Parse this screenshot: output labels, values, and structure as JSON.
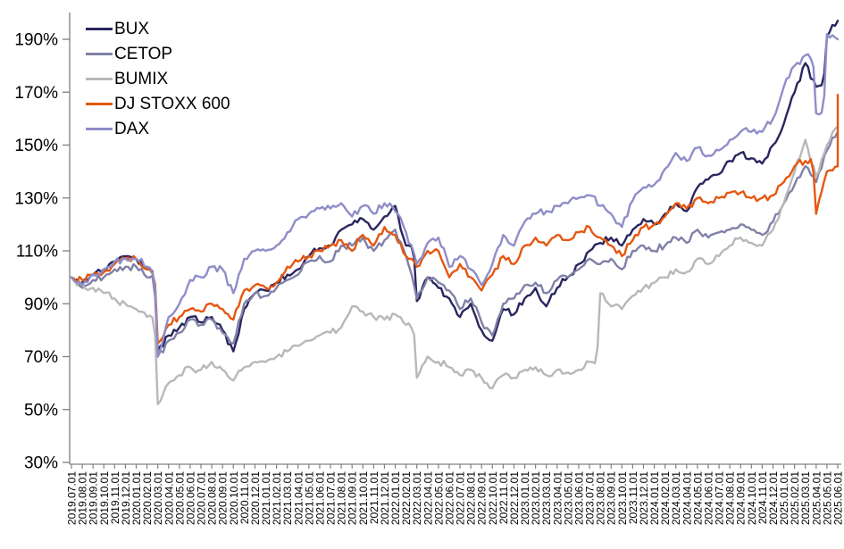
{
  "chart_data": {
    "type": "line",
    "title": "",
    "xlabel": "",
    "ylabel": "",
    "legend_position": "top-left-inside",
    "grid": false,
    "axis_color": "#808080",
    "text_color": "#000000",
    "y_axis": {
      "min": 30,
      "max": 200,
      "tick_step": 20,
      "ticks": [
        190,
        170,
        150,
        130,
        110,
        90,
        70,
        50,
        30
      ],
      "tick_suffix": "%"
    },
    "x_labels": [
      "2019.07.01",
      "2019.08.01",
      "2019.09.01",
      "2019.10.01",
      "2019.11.01",
      "2019.12.01",
      "2020.01.01",
      "2020.02.01",
      "2020.03.01",
      "2020.04.01",
      "2020.05.01",
      "2020.06.01",
      "2020.07.01",
      "2020.08.01",
      "2020.09.01",
      "2020.10.01",
      "2020.11.01",
      "2020.12.01",
      "2021.01.01",
      "2021.02.01",
      "2021.03.01",
      "2021.04.01",
      "2021.05.01",
      "2021.06.01",
      "2021.07.01",
      "2021.08.01",
      "2021.09.01",
      "2021.10.01",
      "2021.11.01",
      "2021.12.01",
      "2022.01.01",
      "2022.02.01",
      "2022.03.01",
      "2022.04.01",
      "2022.05.01",
      "2022.06.01",
      "2022.07.01",
      "2022.08.01",
      "2022.09.01",
      "2022.10.01",
      "2022.11.01",
      "2022.12.01",
      "2023.01.01",
      "2023.02.01",
      "2023.03.01",
      "2023.04.01",
      "2023.05.01",
      "2023.06.01",
      "2023.07.01",
      "2023.08.01",
      "2023.09.01",
      "2023.10.01",
      "2023.11.01",
      "2023.12.01",
      "2024.01.01",
      "2024.02.01",
      "2024.03.01",
      "2024.04.01",
      "2024.05.01",
      "2024.06.01",
      "2024.07.01",
      "2024.08.01",
      "2024.09.01",
      "2024.10.01",
      "2024.11.01",
      "2024.12.01",
      "2025.01.01",
      "2025.02.01",
      "2025.03.01",
      "2025.04.01",
      "2025.05.01",
      "2025.06.01"
    ],
    "series": [
      {
        "name": "BUX",
        "color": "#29265E",
        "values": [
          100,
          98,
          101,
          103,
          106,
          108,
          107,
          103,
          72,
          78,
          81,
          85,
          83,
          85,
          80,
          72,
          88,
          94,
          95,
          98,
          101,
          103,
          108,
          111,
          112,
          118,
          120,
          122,
          118,
          123,
          127,
          112,
          91,
          100,
          96,
          92,
          85,
          90,
          80,
          76,
          88,
          86,
          92,
          96,
          89,
          96,
          100,
          105,
          110,
          113,
          115,
          112,
          118,
          122,
          120,
          124,
          128,
          125,
          134,
          137,
          139,
          144,
          147,
          145,
          143,
          150,
          158,
          170,
          181,
          172,
          191,
          197
        ]
      },
      {
        "name": "CETOP",
        "color": "#8080A8",
        "values": [
          100,
          96,
          99,
          100,
          103,
          104,
          104,
          100,
          70,
          76,
          79,
          84,
          82,
          84,
          79,
          75,
          90,
          94,
          93,
          96,
          99,
          101,
          106,
          108,
          106,
          112,
          112,
          115,
          110,
          114,
          118,
          108,
          92,
          100,
          98,
          95,
          88,
          92,
          83,
          78,
          90,
          92,
          97,
          98,
          94,
          99,
          100,
          103,
          107,
          105,
          107,
          103,
          110,
          112,
          110,
          112,
          115,
          113,
          118,
          115,
          117,
          118,
          120,
          118,
          116,
          121,
          128,
          135,
          142,
          136,
          148,
          155
        ]
      },
      {
        "name": "BUMIX",
        "color": "#B8B8B8",
        "values": [
          100,
          97,
          96,
          94,
          92,
          90,
          88,
          85,
          52,
          60,
          63,
          66,
          65,
          68,
          65,
          61,
          66,
          68,
          68,
          70,
          72,
          74,
          76,
          78,
          79,
          81,
          89,
          87,
          85,
          84,
          86,
          82,
          62,
          70,
          68,
          66,
          63,
          65,
          62,
          58,
          63,
          62,
          65,
          66,
          63,
          65,
          64,
          65,
          68,
          94,
          89,
          88,
          93,
          96,
          98,
          100,
          103,
          102,
          107,
          105,
          108,
          112,
          115,
          113,
          112,
          118,
          128,
          140,
          152,
          138,
          150,
          157
        ]
      },
      {
        "name": "DJ STOXX 600",
        "color": "#E55711",
        "end_spike_value": 169,
        "values": [
          100,
          99,
          101,
          102,
          105,
          107,
          107,
          103,
          75,
          82,
          85,
          88,
          87,
          90,
          88,
          84,
          95,
          97,
          96,
          98,
          104,
          106,
          108,
          110,
          112,
          114,
          110,
          116,
          112,
          119,
          116,
          108,
          104,
          110,
          110,
          100,
          105,
          100,
          95,
          101,
          108,
          105,
          112,
          115,
          112,
          116,
          114,
          117,
          119,
          115,
          112,
          108,
          114,
          119,
          120,
          123,
          128,
          126,
          130,
          128,
          130,
          132,
          132,
          130,
          130,
          131,
          136,
          142,
          144,
          124,
          140,
          142
        ]
      },
      {
        "name": "DAX",
        "color": "#8F8DC8",
        "values": [
          100,
          97,
          101,
          103,
          106,
          107,
          107,
          104,
          70,
          85,
          90,
          99,
          100,
          104,
          103,
          94,
          107,
          110,
          110,
          112,
          117,
          122,
          124,
          126,
          126,
          128,
          123,
          127,
          124,
          128,
          125,
          117,
          105,
          113,
          115,
          104,
          108,
          103,
          97,
          105,
          116,
          112,
          121,
          124,
          125,
          127,
          128,
          130,
          131,
          127,
          124,
          119,
          129,
          134,
          135,
          141,
          147,
          144,
          149,
          146,
          148,
          152,
          155,
          155,
          155,
          160,
          172,
          180,
          184,
          162,
          192,
          190
        ]
      }
    ]
  }
}
